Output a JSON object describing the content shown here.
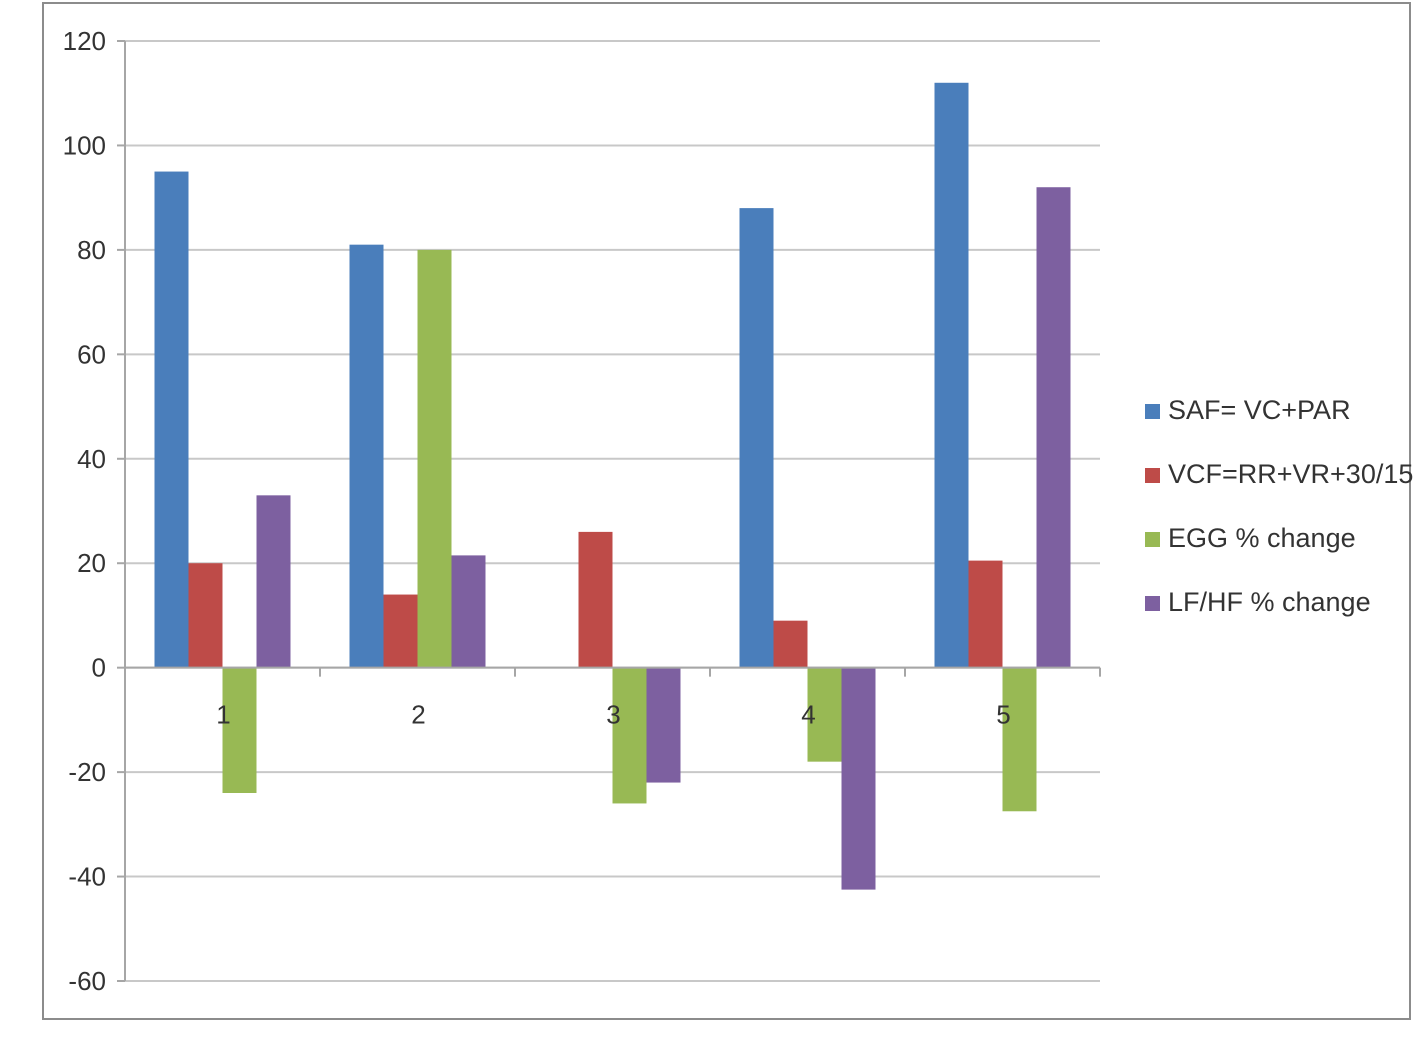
{
  "chart_data": {
    "type": "bar",
    "title": "",
    "xlabel": "",
    "ylabel": "",
    "categories": [
      "1",
      "2",
      "3",
      "4",
      "5"
    ],
    "ylim": [
      -60,
      120
    ],
    "yticks": [
      120,
      100,
      80,
      60,
      40,
      20,
      0,
      -20,
      -40,
      -60
    ],
    "grid": true,
    "legend_position": "right",
    "series": [
      {
        "name": "SAF= VC+PAR",
        "color": "#4a7ebb",
        "values": [
          95,
          81,
          0,
          88,
          112
        ]
      },
      {
        "name": "VCF=RR+VR+30/15",
        "color": "#be4b48",
        "values": [
          20,
          14,
          26,
          9,
          20.5
        ]
      },
      {
        "name": "EGG % change",
        "color": "#98b954",
        "values": [
          -24,
          80,
          -26,
          -18,
          -27.5
        ]
      },
      {
        "name": "LF/HF % change",
        "color": "#7d60a0",
        "values": [
          33,
          21.5,
          -22,
          -42.5,
          92
        ]
      }
    ]
  }
}
